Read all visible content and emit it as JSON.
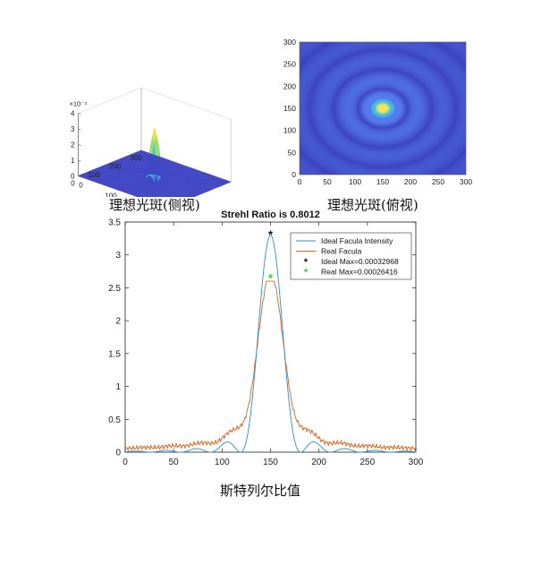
{
  "captions": {
    "side_view": "理想光斑(侧视)",
    "top_view": "理想光斑(俯视)",
    "strehl": "斯特列尔比值"
  },
  "chart_data": [
    {
      "type": "surface3d",
      "title": "",
      "z_exponent_label": "×10⁻⁴",
      "z_ticks": [
        "0",
        "1",
        "2",
        "3",
        "4"
      ],
      "zlim": [
        0,
        4
      ],
      "x_ticks": [
        "0",
        "100",
        "200",
        "300"
      ],
      "y_ticks": [
        "0",
        "100",
        "200",
        "300"
      ],
      "xlim": [
        0,
        300
      ],
      "ylim": [
        0,
        300
      ],
      "peak": 3.3,
      "center": [
        150,
        150
      ]
    },
    {
      "type": "heatmap",
      "title": "",
      "x_ticks": [
        "0",
        "50",
        "100",
        "150",
        "200",
        "250",
        "300"
      ],
      "y_ticks": [
        "0",
        "50",
        "100",
        "150",
        "200",
        "250",
        "300"
      ],
      "xlim": [
        0,
        300
      ],
      "ylim": [
        0,
        300
      ],
      "center": [
        150,
        150
      ],
      "colors": {
        "low": "#3b3fbd",
        "ring": "#4e74e6",
        "peak": "#ffe25a"
      }
    },
    {
      "type": "line",
      "title": "Strehl Ratio is 0.8012",
      "xlabel": "",
      "ylabel": "",
      "xlim": [
        0,
        300
      ],
      "ylim": [
        0,
        3.5
      ],
      "x_ticks": [
        "0",
        "50",
        "100",
        "150",
        "200",
        "250",
        "300"
      ],
      "y_ticks": [
        "0",
        "0.5",
        "1",
        "1.5",
        "2",
        "2.5",
        "3",
        "3.5"
      ],
      "legend_position": "top-right",
      "series": [
        {
          "name": "Ideal Facula Intensity",
          "color": "#2f8fcb",
          "peak": 3.3,
          "center": 150
        },
        {
          "name": "Real Facula",
          "color": "#d8641e",
          "peak": 2.6,
          "center": 150
        }
      ],
      "markers": [
        {
          "name": "Ideal Max=0.00032968",
          "x": 150,
          "y": 3.3,
          "color": "#111111",
          "symbol": "*"
        },
        {
          "name": "Real Max=0.00026416",
          "x": 150,
          "y": 2.64,
          "color": "#22dd22",
          "symbol": "*"
        }
      ]
    }
  ]
}
